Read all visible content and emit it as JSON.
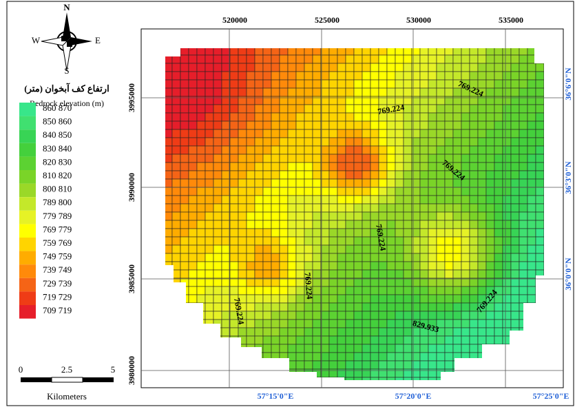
{
  "compass": {
    "north": "N",
    "south": "S",
    "east": "E",
    "west": "W"
  },
  "legend": {
    "title_fa": "ارتفاع کف آبخوان (متر)",
    "title_en": "Bedrock elevation (m)",
    "classes": [
      {
        "label": "860 870",
        "color": "#38e68a"
      },
      {
        "label": "850 860",
        "color": "#40e070"
      },
      {
        "label": "840 850",
        "color": "#38d455"
      },
      {
        "label": "830 840",
        "color": "#44d03c"
      },
      {
        "label": "820 830",
        "color": "#5cd232"
      },
      {
        "label": "810 820",
        "color": "#7ad428"
      },
      {
        "label": "800 810",
        "color": "#9ad828"
      },
      {
        "label": "789 800",
        "color": "#c4e82a"
      },
      {
        "label": "779 789",
        "color": "#e6f226"
      },
      {
        "label": "769 779",
        "color": "#ffff00"
      },
      {
        "label": "759 769",
        "color": "#ffd400"
      },
      {
        "label": "749 759",
        "color": "#ffac00"
      },
      {
        "label": "739 749",
        "color": "#ff8a0a"
      },
      {
        "label": "729 739",
        "color": "#f56416"
      },
      {
        "label": "719 729",
        "color": "#ef3c16"
      },
      {
        "label": "709 719",
        "color": "#e61e2a"
      }
    ]
  },
  "scale_bar": {
    "labels": [
      "0",
      "2.5",
      "5"
    ],
    "unit": "Kilometers"
  },
  "axes": {
    "top": [
      "520000",
      "525000",
      "530000",
      "535000"
    ],
    "left": [
      "3995000",
      "3990000",
      "3985000",
      "3980000"
    ],
    "right": [
      "36°6'0\"N",
      "36°3'0\"N",
      "36°0'0\"N"
    ],
    "bottom": [
      "57°15'0\"E",
      "57°20'0\"E",
      "57°25'0\"E"
    ]
  },
  "contour_labels": [
    "769.224",
    "769.224",
    "769.224",
    "769.224",
    "769.224",
    "769.224",
    "769.224",
    "829.933"
  ]
}
